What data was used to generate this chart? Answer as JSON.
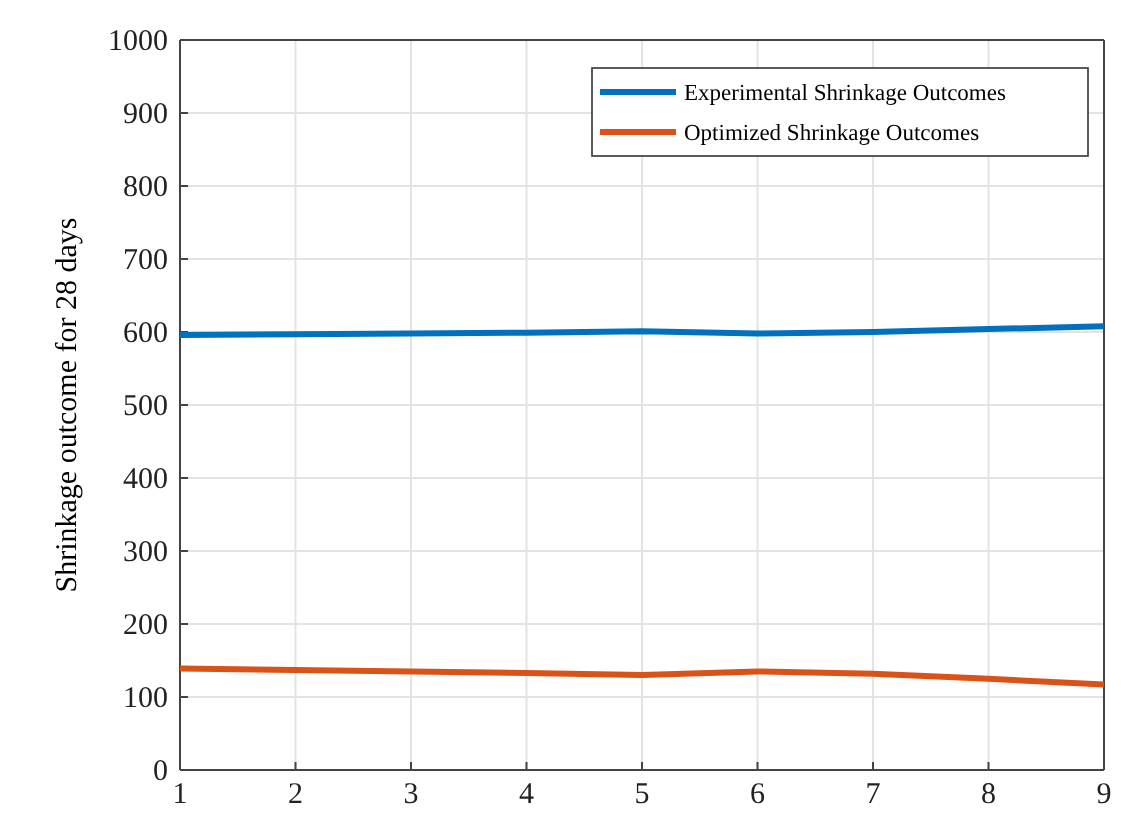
{
  "chart_data": {
    "type": "line",
    "ylabel": "Shrinkage outcome for 28 days",
    "x": [
      1,
      2,
      3,
      4,
      5,
      6,
      7,
      8,
      9
    ],
    "series": [
      {
        "name": "Experimental Shrinkage Outcomes",
        "color": "#0072bd",
        "values": [
          596,
          597,
          598,
          599,
          601,
          598,
          600,
          604,
          608
        ]
      },
      {
        "name": "Optimized Shrinkage Outcomes",
        "color": "#d95319",
        "values": [
          139,
          137,
          135,
          133,
          130,
          135,
          132,
          125,
          117
        ]
      }
    ],
    "xlim": [
      1,
      9
    ],
    "xticks": [
      1,
      2,
      3,
      4,
      5,
      6,
      7,
      8,
      9
    ],
    "ylim": [
      0,
      1000
    ],
    "yticks": [
      0,
      100,
      200,
      300,
      400,
      500,
      600,
      700,
      800,
      900,
      1000
    ],
    "grid": true,
    "legend": "top right",
    "marker": "none",
    "line_style": "solid"
  }
}
